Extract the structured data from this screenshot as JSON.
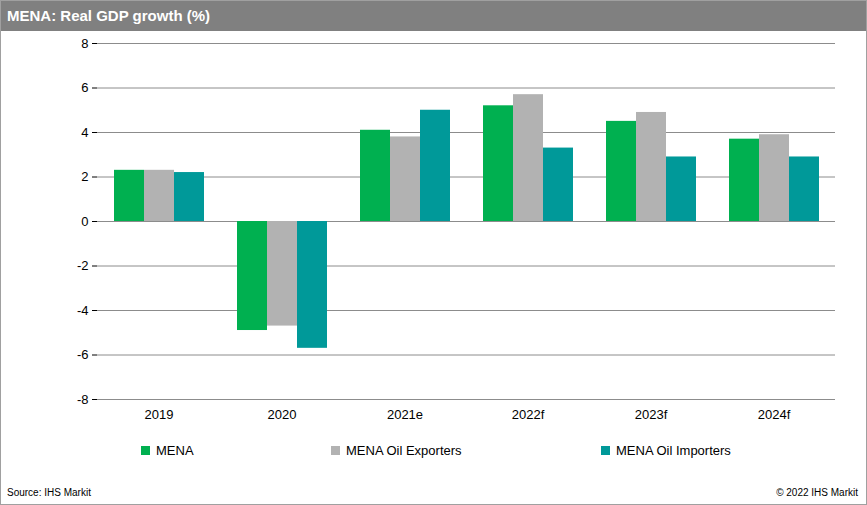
{
  "chart_data": {
    "type": "bar",
    "title": "MENA: Real GDP growth (%)",
    "caption": "Source: IHS Markit",
    "copyright": "© 2022 IHS Markit",
    "categories": [
      "2019",
      "2020",
      "2021e",
      "2022f",
      "2023f",
      "2024f"
    ],
    "series": [
      {
        "name": "MENA",
        "color": "#00b050",
        "values": [
          2.3,
          -4.9,
          4.1,
          5.2,
          4.5,
          3.7
        ]
      },
      {
        "name": "MENA Oil Exporters",
        "color": "#b2b2b2",
        "values": [
          2.3,
          -4.7,
          3.8,
          5.7,
          4.9,
          3.9
        ]
      },
      {
        "name": "MENA Oil Importers",
        "color": "#009999",
        "values": [
          2.2,
          -5.7,
          5.0,
          3.3,
          2.9,
          2.9
        ]
      }
    ],
    "ylim": [
      -8,
      8
    ],
    "yticks": [
      -8,
      -6,
      -4,
      -2,
      0,
      2,
      4,
      6,
      8
    ],
    "grid": true,
    "legend": "bottom"
  }
}
